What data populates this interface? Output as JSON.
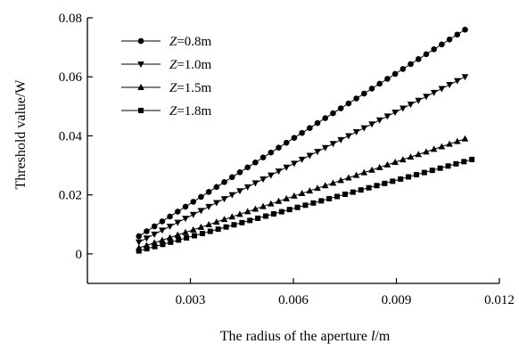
{
  "chart_data": {
    "type": "line",
    "title": "",
    "xlabel_main": "The radius of the aperture ",
    "xlabel_var": "l",
    "xlabel_unit": "/m",
    "ylabel": "Threshold value/W",
    "xlim": [
      0.0,
      0.012
    ],
    "ylim": [
      -0.01,
      0.08
    ],
    "xticks": [
      0.003,
      0.006,
      0.009,
      0.012
    ],
    "xtick_labels": [
      "0.003",
      "0.006",
      "0.009",
      "0.012"
    ],
    "yticks": [
      0,
      0.02,
      0.04,
      0.06,
      0.08
    ],
    "ytick_labels": [
      "0",
      "0.02",
      "0.04",
      "0.06",
      "0.08"
    ],
    "grid": false,
    "legend_position": "top-left",
    "series": [
      {
        "name_var": "Z",
        "name_value": "=0.8m",
        "marker": "circle",
        "x_start": 0.0015,
        "x_end": 0.011,
        "y_start": 0.006,
        "y_end": 0.076,
        "points": 43
      },
      {
        "name_var": "Z",
        "name_value": "=1.0m",
        "marker": "triangle-down",
        "x_start": 0.0015,
        "x_end": 0.011,
        "y_start": 0.004,
        "y_end": 0.06,
        "points": 43
      },
      {
        "name_var": "Z",
        "name_value": "=1.5m",
        "marker": "triangle-up",
        "x_start": 0.0015,
        "x_end": 0.011,
        "y_start": 0.002,
        "y_end": 0.039,
        "points": 43
      },
      {
        "name_var": "Z",
        "name_value": "=1.8m",
        "marker": "square",
        "x_start": 0.0015,
        "x_end": 0.0112,
        "y_start": 0.001,
        "y_end": 0.032,
        "points": 43
      }
    ]
  }
}
